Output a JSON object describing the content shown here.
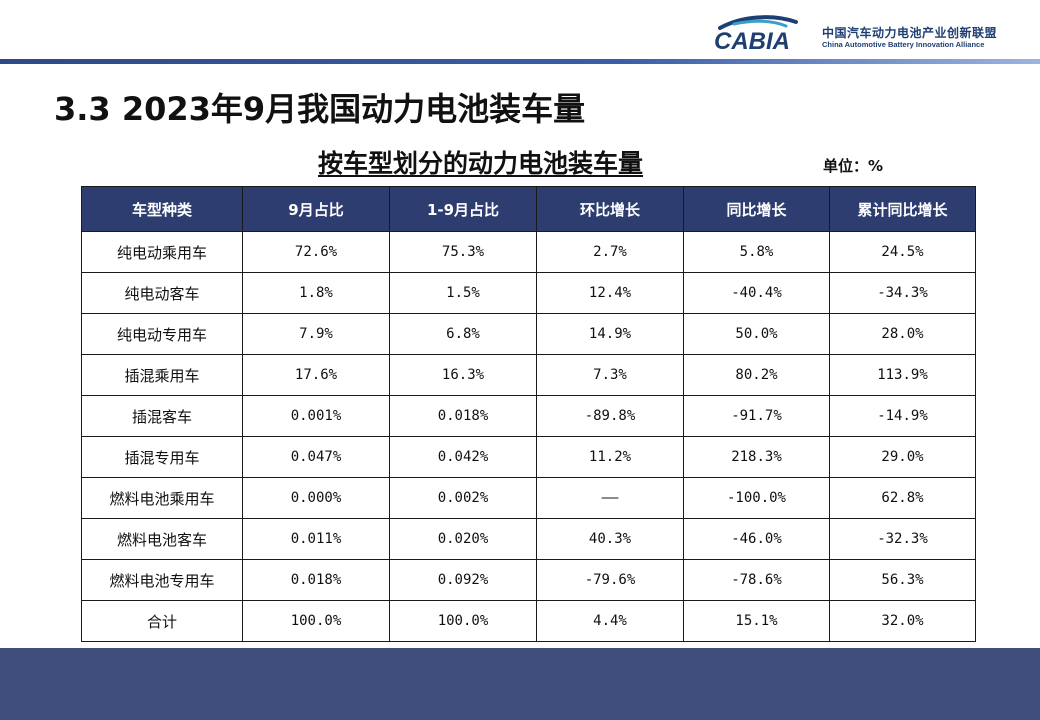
{
  "header": {
    "logo_text": "CABIA",
    "org_name_cn": "中国汽车动力电池产业创新联盟",
    "org_name_en": "China Automotive Battery Innovation Alliance"
  },
  "section_title": "3.3 2023年9月我国动力电池装车量",
  "table_title": "按车型划分的动力电池装车量",
  "unit": "单位：%",
  "colors": {
    "header_bg": "#2e3d70",
    "footer_bg": "#3f4d7c",
    "brand_blue": "#1f3f73"
  },
  "table": {
    "headers": [
      "车型种类",
      "9月占比",
      "1-9月占比",
      "环比增长",
      "同比增长",
      "累计同比增长"
    ],
    "rows": [
      [
        "纯电动乘用车",
        "72.6%",
        "75.3%",
        "2.7%",
        "5.8%",
        "24.5%"
      ],
      [
        "纯电动客车",
        "1.8%",
        "1.5%",
        "12.4%",
        "-40.4%",
        "-34.3%"
      ],
      [
        "纯电动专用车",
        "7.9%",
        "6.8%",
        "14.9%",
        "50.0%",
        "28.0%"
      ],
      [
        "插混乘用车",
        "17.6%",
        "16.3%",
        "7.3%",
        "80.2%",
        "113.9%"
      ],
      [
        "插混客车",
        "0.001%",
        "0.018%",
        "-89.8%",
        "-91.7%",
        "-14.9%"
      ],
      [
        "插混专用车",
        "0.047%",
        "0.042%",
        "11.2%",
        "218.3%",
        "29.0%"
      ],
      [
        "燃料电池乘用车",
        "0.000%",
        "0.002%",
        "——",
        "-100.0%",
        "62.8%"
      ],
      [
        "燃料电池客车",
        "0.011%",
        "0.020%",
        "40.3%",
        "-46.0%",
        "-32.3%"
      ],
      [
        "燃料电池专用车",
        "0.018%",
        "0.092%",
        "-79.6%",
        "-78.6%",
        "56.3%"
      ],
      [
        "合计",
        "100.0%",
        "100.0%",
        "4.4%",
        "15.1%",
        "32.0%"
      ]
    ]
  }
}
